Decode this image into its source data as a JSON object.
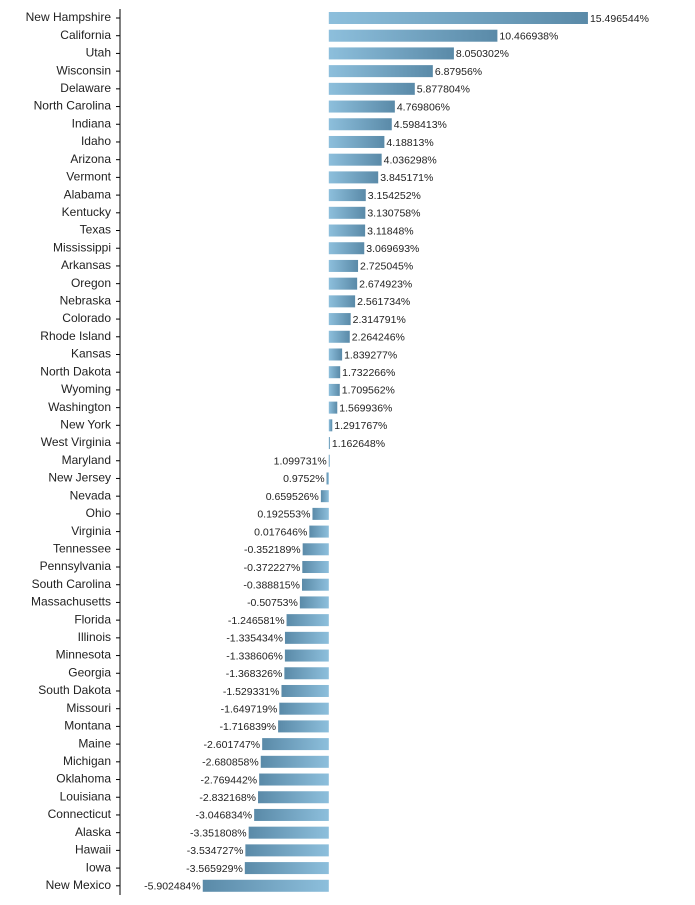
{
  "chart_data": {
    "type": "hbar",
    "categories": [
      "New Hampshire",
      "California",
      "Utah",
      "Wisconsin",
      "Delaware",
      "North Carolina",
      "Indiana",
      "Idaho",
      "Arizona",
      "Vermont",
      "Alabama",
      "Kentucky",
      "Texas",
      "Mississippi",
      "Arkansas",
      "Oregon",
      "Nebraska",
      "Colorado",
      "Rhode Island",
      "Kansas",
      "North Dakota",
      "Wyoming",
      "Washington",
      "New York",
      "West Virginia",
      "Maryland",
      "New Jersey",
      "Nevada",
      "Ohio",
      "Virginia",
      "Tennessee",
      "Pennsylvania",
      "South Carolina",
      "Massachusetts",
      "Florida",
      "Illinois",
      "Minnesota",
      "Georgia",
      "South Dakota",
      "Missouri",
      "Montana",
      "Maine",
      "Michigan",
      "Oklahoma",
      "Louisiana",
      "Connecticut",
      "Alaska",
      "Hawaii",
      "Iowa",
      "New Mexico"
    ],
    "values": [
      15.496544,
      10.466938,
      8.050302,
      6.87956,
      5.877804,
      4.769806,
      4.598413,
      4.18813,
      4.036298,
      3.845171,
      3.154252,
      3.130758,
      3.11848,
      3.069693,
      2.725045,
      2.674923,
      2.561734,
      2.314791,
      2.264246,
      1.839277,
      1.732266,
      1.709562,
      1.569936,
      1.291767,
      1.162648,
      1.099731,
      0.9752,
      0.659526,
      0.192553,
      0.017646,
      -0.352189,
      -0.372227,
      -0.388815,
      -0.50753,
      -1.246581,
      -1.335434,
      -1.338606,
      -1.368326,
      -1.529331,
      -1.649719,
      -1.716839,
      -2.601747,
      -2.680858,
      -2.769442,
      -2.832168,
      -3.046834,
      -3.351808,
      -3.534727,
      -3.565929,
      -5.902484
    ],
    "value_labels": [
      "15.496544%",
      "10.466938%",
      "8.050302%",
      "6.87956%",
      "5.877804%",
      "4.769806%",
      "4.598413%",
      "4.18813%",
      "4.036298%",
      "3.845171%",
      "3.154252%",
      "3.130758%",
      "3.11848%",
      "3.069693%",
      "2.725045%",
      "2.674923%",
      "2.561734%",
      "2.314791%",
      "2.264246%",
      "1.839277%",
      "1.732266%",
      "1.709562%",
      "1.569936%",
      "1.291767%",
      "1.162648%",
      "1.099731%",
      "0.9752%",
      "0.659526%",
      "0.192553%",
      "0.017646%",
      "-0.352189%",
      "-0.372227%",
      "-0.388815%",
      "-0.50753%",
      "-1.246581%",
      "-1.335434%",
      "-1.338606%",
      "-1.368326%",
      "-1.529331%",
      "-1.649719%",
      "-1.716839%",
      "-2.601747%",
      "-2.680858%",
      "-2.769442%",
      "-2.832168%",
      "-3.046834%",
      "-3.351808%",
      "-3.534727%",
      "-3.565929%",
      "-5.902484%"
    ],
    "bar_base": 1.1,
    "xlim": [
      -7,
      16.5
    ],
    "colors": [
      "#8dbfdc",
      "#5a8aa8"
    ]
  }
}
